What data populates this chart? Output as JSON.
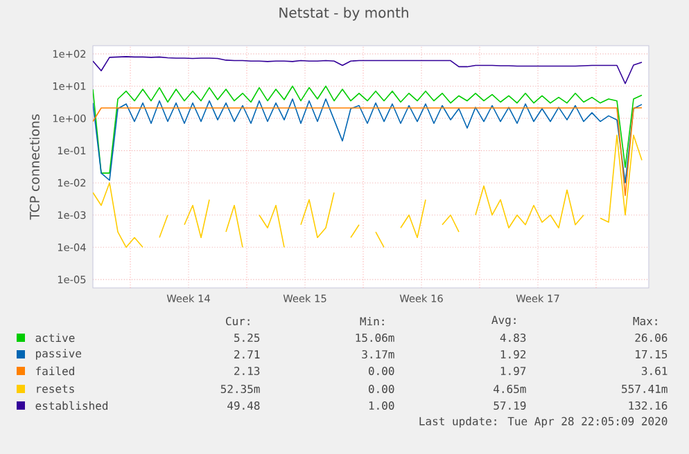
{
  "chart_data": {
    "type": "line",
    "title": "Netstat - by month",
    "ylabel": "TCP connections",
    "log": "y",
    "grid": true,
    "legend": "bottom",
    "marker": "none",
    "line_style": "solid",
    "xlim": [
      "2020-03-26T12:00",
      "2020-04-28T22:00"
    ],
    "ylim": [
      5.5e-06,
      180
    ],
    "xticks": [
      {
        "value": "2020-03-28T18:00",
        "label": null
      },
      {
        "value": "2020-04-01T06:00",
        "label": "Week 14"
      },
      {
        "value": "2020-04-04T18:00",
        "label": null
      },
      {
        "value": "2020-04-08T06:00",
        "label": "Week 15"
      },
      {
        "value": "2020-04-11T18:00",
        "label": null
      },
      {
        "value": "2020-04-15T06:00",
        "label": "Week 16"
      },
      {
        "value": "2020-04-18T18:00",
        "label": null
      },
      {
        "value": "2020-04-22T06:00",
        "label": "Week 17"
      },
      {
        "value": "2020-04-25T18:00",
        "label": null
      }
    ],
    "yticks": [
      {
        "value": 1e-05,
        "label": "1e-05"
      },
      {
        "value": 0.0001,
        "label": "1e-04"
      },
      {
        "value": 0.001,
        "label": "1e-03"
      },
      {
        "value": 0.01,
        "label": "1e-02"
      },
      {
        "value": 0.1,
        "label": "1e-01"
      },
      {
        "value": 1,
        "label": "1e+00"
      },
      {
        "value": 10,
        "label": "1e+01"
      },
      {
        "value": 100,
        "label": "1e+02"
      }
    ],
    "x": [
      "2020-03-26T12:00",
      "2020-03-27T00:00",
      "2020-03-27T12:00",
      "2020-03-28T00:00",
      "2020-03-28T12:00",
      "2020-03-29T00:00",
      "2020-03-29T12:00",
      "2020-03-30T00:00",
      "2020-03-30T12:00",
      "2020-03-31T00:00",
      "2020-03-31T12:00",
      "2020-04-01T00:00",
      "2020-04-01T12:00",
      "2020-04-02T00:00",
      "2020-04-02T12:00",
      "2020-04-03T00:00",
      "2020-04-03T12:00",
      "2020-04-04T00:00",
      "2020-04-04T12:00",
      "2020-04-05T00:00",
      "2020-04-05T12:00",
      "2020-04-06T00:00",
      "2020-04-06T12:00",
      "2020-04-07T00:00",
      "2020-04-07T12:00",
      "2020-04-08T00:00",
      "2020-04-08T12:00",
      "2020-04-09T00:00",
      "2020-04-09T12:00",
      "2020-04-10T00:00",
      "2020-04-10T12:00",
      "2020-04-11T00:00",
      "2020-04-11T12:00",
      "2020-04-12T00:00",
      "2020-04-12T12:00",
      "2020-04-13T00:00",
      "2020-04-13T12:00",
      "2020-04-14T00:00",
      "2020-04-14T12:00",
      "2020-04-15T00:00",
      "2020-04-15T12:00",
      "2020-04-16T00:00",
      "2020-04-16T12:00",
      "2020-04-17T00:00",
      "2020-04-17T12:00",
      "2020-04-18T00:00",
      "2020-04-18T12:00",
      "2020-04-19T00:00",
      "2020-04-19T12:00",
      "2020-04-20T00:00",
      "2020-04-20T12:00",
      "2020-04-21T00:00",
      "2020-04-21T12:00",
      "2020-04-22T00:00",
      "2020-04-22T12:00",
      "2020-04-23T00:00",
      "2020-04-23T12:00",
      "2020-04-24T00:00",
      "2020-04-24T12:00",
      "2020-04-25T00:00",
      "2020-04-25T12:00",
      "2020-04-26T00:00",
      "2020-04-26T12:00",
      "2020-04-27T00:00",
      "2020-04-27T12:00",
      "2020-04-28T00:00",
      "2020-04-28T12:00"
    ],
    "series": [
      {
        "name": "active",
        "color": "#00cc00",
        "values": [
          8,
          0.02,
          0.02,
          4,
          7,
          3.5,
          8,
          3.5,
          9,
          3.2,
          8,
          3.5,
          7,
          3.5,
          9,
          3.8,
          8,
          3.5,
          6,
          3.2,
          9,
          3.5,
          8,
          3.8,
          10,
          3.5,
          9,
          4,
          10,
          3.5,
          8,
          3.5,
          6,
          3.5,
          7,
          3.5,
          7,
          3.2,
          6,
          3.5,
          7,
          3.5,
          6,
          3,
          5,
          3.5,
          6,
          3.5,
          5.5,
          3.2,
          5,
          3,
          6,
          3,
          5,
          3,
          4.5,
          3,
          6,
          3.2,
          4.5,
          3,
          4,
          3.5,
          0.03,
          4,
          5.25
        ]
      },
      {
        "name": "passive",
        "color": "#0066b3",
        "values": [
          3,
          0.02,
          0.012,
          2,
          2.8,
          0.8,
          3,
          0.7,
          3.5,
          0.8,
          3,
          0.7,
          3,
          0.8,
          3.5,
          0.9,
          3,
          0.8,
          2.5,
          0.7,
          3.5,
          0.8,
          3,
          0.9,
          4,
          0.7,
          3.5,
          0.8,
          4,
          0.9,
          0.2,
          2,
          2.5,
          0.7,
          3,
          0.8,
          2.8,
          0.7,
          2.5,
          0.8,
          2.8,
          0.7,
          2.5,
          0.9,
          2,
          0.5,
          2.2,
          0.8,
          2.5,
          0.8,
          2.2,
          0.7,
          2.8,
          0.8,
          2,
          0.8,
          2.2,
          0.9,
          2.5,
          0.8,
          1.5,
          0.8,
          1.2,
          0.9,
          0.01,
          2,
          2.71
        ]
      },
      {
        "name": "failed",
        "color": "#ff8000",
        "values": [
          0.8,
          2.1,
          2.1,
          2.1,
          2.1,
          2.1,
          2.1,
          2.1,
          2.1,
          2.1,
          2.1,
          2.1,
          2.1,
          2.1,
          2.1,
          2.1,
          2.1,
          2.1,
          2.1,
          2.1,
          2.1,
          2.1,
          2.1,
          2.1,
          2.1,
          2.1,
          2.1,
          2.1,
          2.1,
          2.1,
          2.1,
          2.1,
          2.1,
          2.1,
          2.1,
          2.1,
          2.1,
          2.1,
          2.1,
          2.1,
          2.1,
          2.1,
          2.1,
          2.1,
          2.1,
          2.1,
          2.1,
          2.1,
          2.1,
          2.1,
          2.1,
          2.1,
          2.1,
          2.1,
          2.1,
          2.1,
          2.1,
          2.1,
          2.1,
          2.1,
          2.1,
          2.1,
          2.1,
          2.1,
          0.004,
          2.1,
          2.13
        ]
      },
      {
        "name": "resets",
        "color": "#ffcc00",
        "values": [
          0.005,
          0.002,
          0.01,
          0.0003,
          0.0001,
          0.0002,
          0.0001,
          null,
          0.0002,
          0.001,
          null,
          0.0005,
          0.002,
          0.0002,
          0.003,
          null,
          0.0003,
          0.002,
          0.0001,
          null,
          0.001,
          0.0004,
          0.002,
          0.0001,
          null,
          0.0005,
          0.003,
          0.0002,
          0.0004,
          0.005,
          null,
          0.0002,
          0.0005,
          null,
          0.0003,
          0.0001,
          null,
          0.0004,
          0.001,
          0.0002,
          0.003,
          null,
          0.0005,
          0.001,
          0.0003,
          null,
          0.001,
          0.008,
          0.001,
          0.003,
          0.0004,
          0.001,
          0.0005,
          0.002,
          0.0006,
          0.001,
          0.0004,
          0.006,
          0.0005,
          0.001,
          null,
          0.0008,
          0.0006,
          0.3,
          0.001,
          0.3,
          0.05
        ]
      },
      {
        "name": "established",
        "color": "#330099",
        "values": [
          60,
          30,
          78,
          80,
          82,
          80,
          80,
          78,
          80,
          76,
          74,
          74,
          72,
          74,
          74,
          72,
          64,
          62,
          62,
          60,
          60,
          58,
          60,
          60,
          58,
          62,
          60,
          60,
          62,
          60,
          44,
          60,
          62,
          62,
          62,
          62,
          62,
          62,
          62,
          62,
          62,
          62,
          62,
          62,
          40,
          40,
          44,
          44,
          44,
          43,
          43,
          42,
          42,
          42,
          42,
          42,
          42,
          42,
          42,
          43,
          44,
          44,
          44,
          44,
          12,
          45,
          55
        ]
      }
    ],
    "annotations": [
      "Cur:",
      "Min:",
      "Avg:",
      "Max:",
      "5.25",
      "15.06m",
      "4.83",
      "26.06",
      "2.71",
      "3.17m",
      "1.92",
      "17.15",
      "2.13",
      "0.00",
      "1.97",
      "3.61",
      "52.35m",
      "0.00",
      "4.65m",
      "557.41m",
      "49.48",
      "1.00",
      "57.19",
      "132.16",
      "Last update: Tue Apr 28 22:05:09 2020"
    ]
  }
}
